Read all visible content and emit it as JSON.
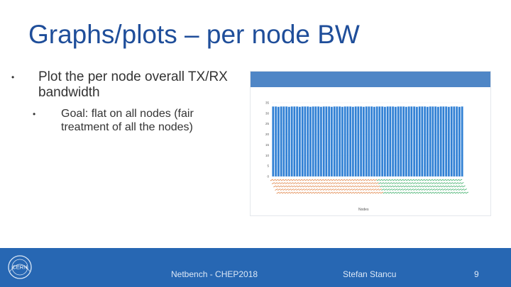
{
  "slide": {
    "title": "Graphs/plots – per node BW",
    "bullets": [
      {
        "marker": "•",
        "text": "Plot the per node overall TX/RX bandwidth"
      },
      {
        "marker": "•",
        "text": "Goal: flat on all nodes (fair treatment of all the nodes)"
      }
    ]
  },
  "chart_data": {
    "type": "bar",
    "title": "",
    "xlabel": "Nodes",
    "ylabel": "",
    "ylim": [
      0,
      35
    ],
    "yticks": [
      0,
      5,
      10,
      15,
      20,
      25,
      30,
      35
    ],
    "bar_count": 72,
    "values_note_free": true,
    "series": [
      {
        "values": [
          33.2,
          33.2,
          33.1,
          33.2,
          33.2,
          33.2,
          33.1,
          33.2,
          33.2,
          33.2,
          33.1,
          33.2,
          33.2,
          33.2,
          33.1,
          33.2,
          33.2,
          33.2,
          33.1,
          33.2,
          33.2,
          33.2,
          33.1,
          33.2,
          33.2,
          33.2,
          33.1,
          33.2,
          33.2,
          33.2,
          33.1,
          33.2,
          33.2,
          33.2,
          33.1,
          33.2,
          33.2,
          33.2,
          33.1,
          33.2,
          33.2,
          33.2,
          33.1,
          33.2,
          33.2,
          33.2,
          33.1,
          33.2,
          33.2,
          33.2,
          33.1,
          33.2,
          33.2,
          33.2,
          33.1,
          33.2,
          33.2,
          33.2,
          33.1,
          33.2,
          33.2,
          33.2,
          33.1,
          33.2,
          33.2,
          33.2,
          33.1,
          33.2,
          33.2,
          33.2,
          33.1,
          33.2
        ]
      }
    ],
    "colors": {
      "bar": "#2f7fd3",
      "bar_edge": "#a9cdf2",
      "header": "#4f86c6",
      "label_orange": "#e0864a",
      "label_green": "#3fae6a",
      "grid": "#e8ebf0"
    }
  },
  "footer": {
    "logo_text": "CERN",
    "event": "Netbench - CHEP2018",
    "author": "Stefan Stancu",
    "page": "9"
  }
}
